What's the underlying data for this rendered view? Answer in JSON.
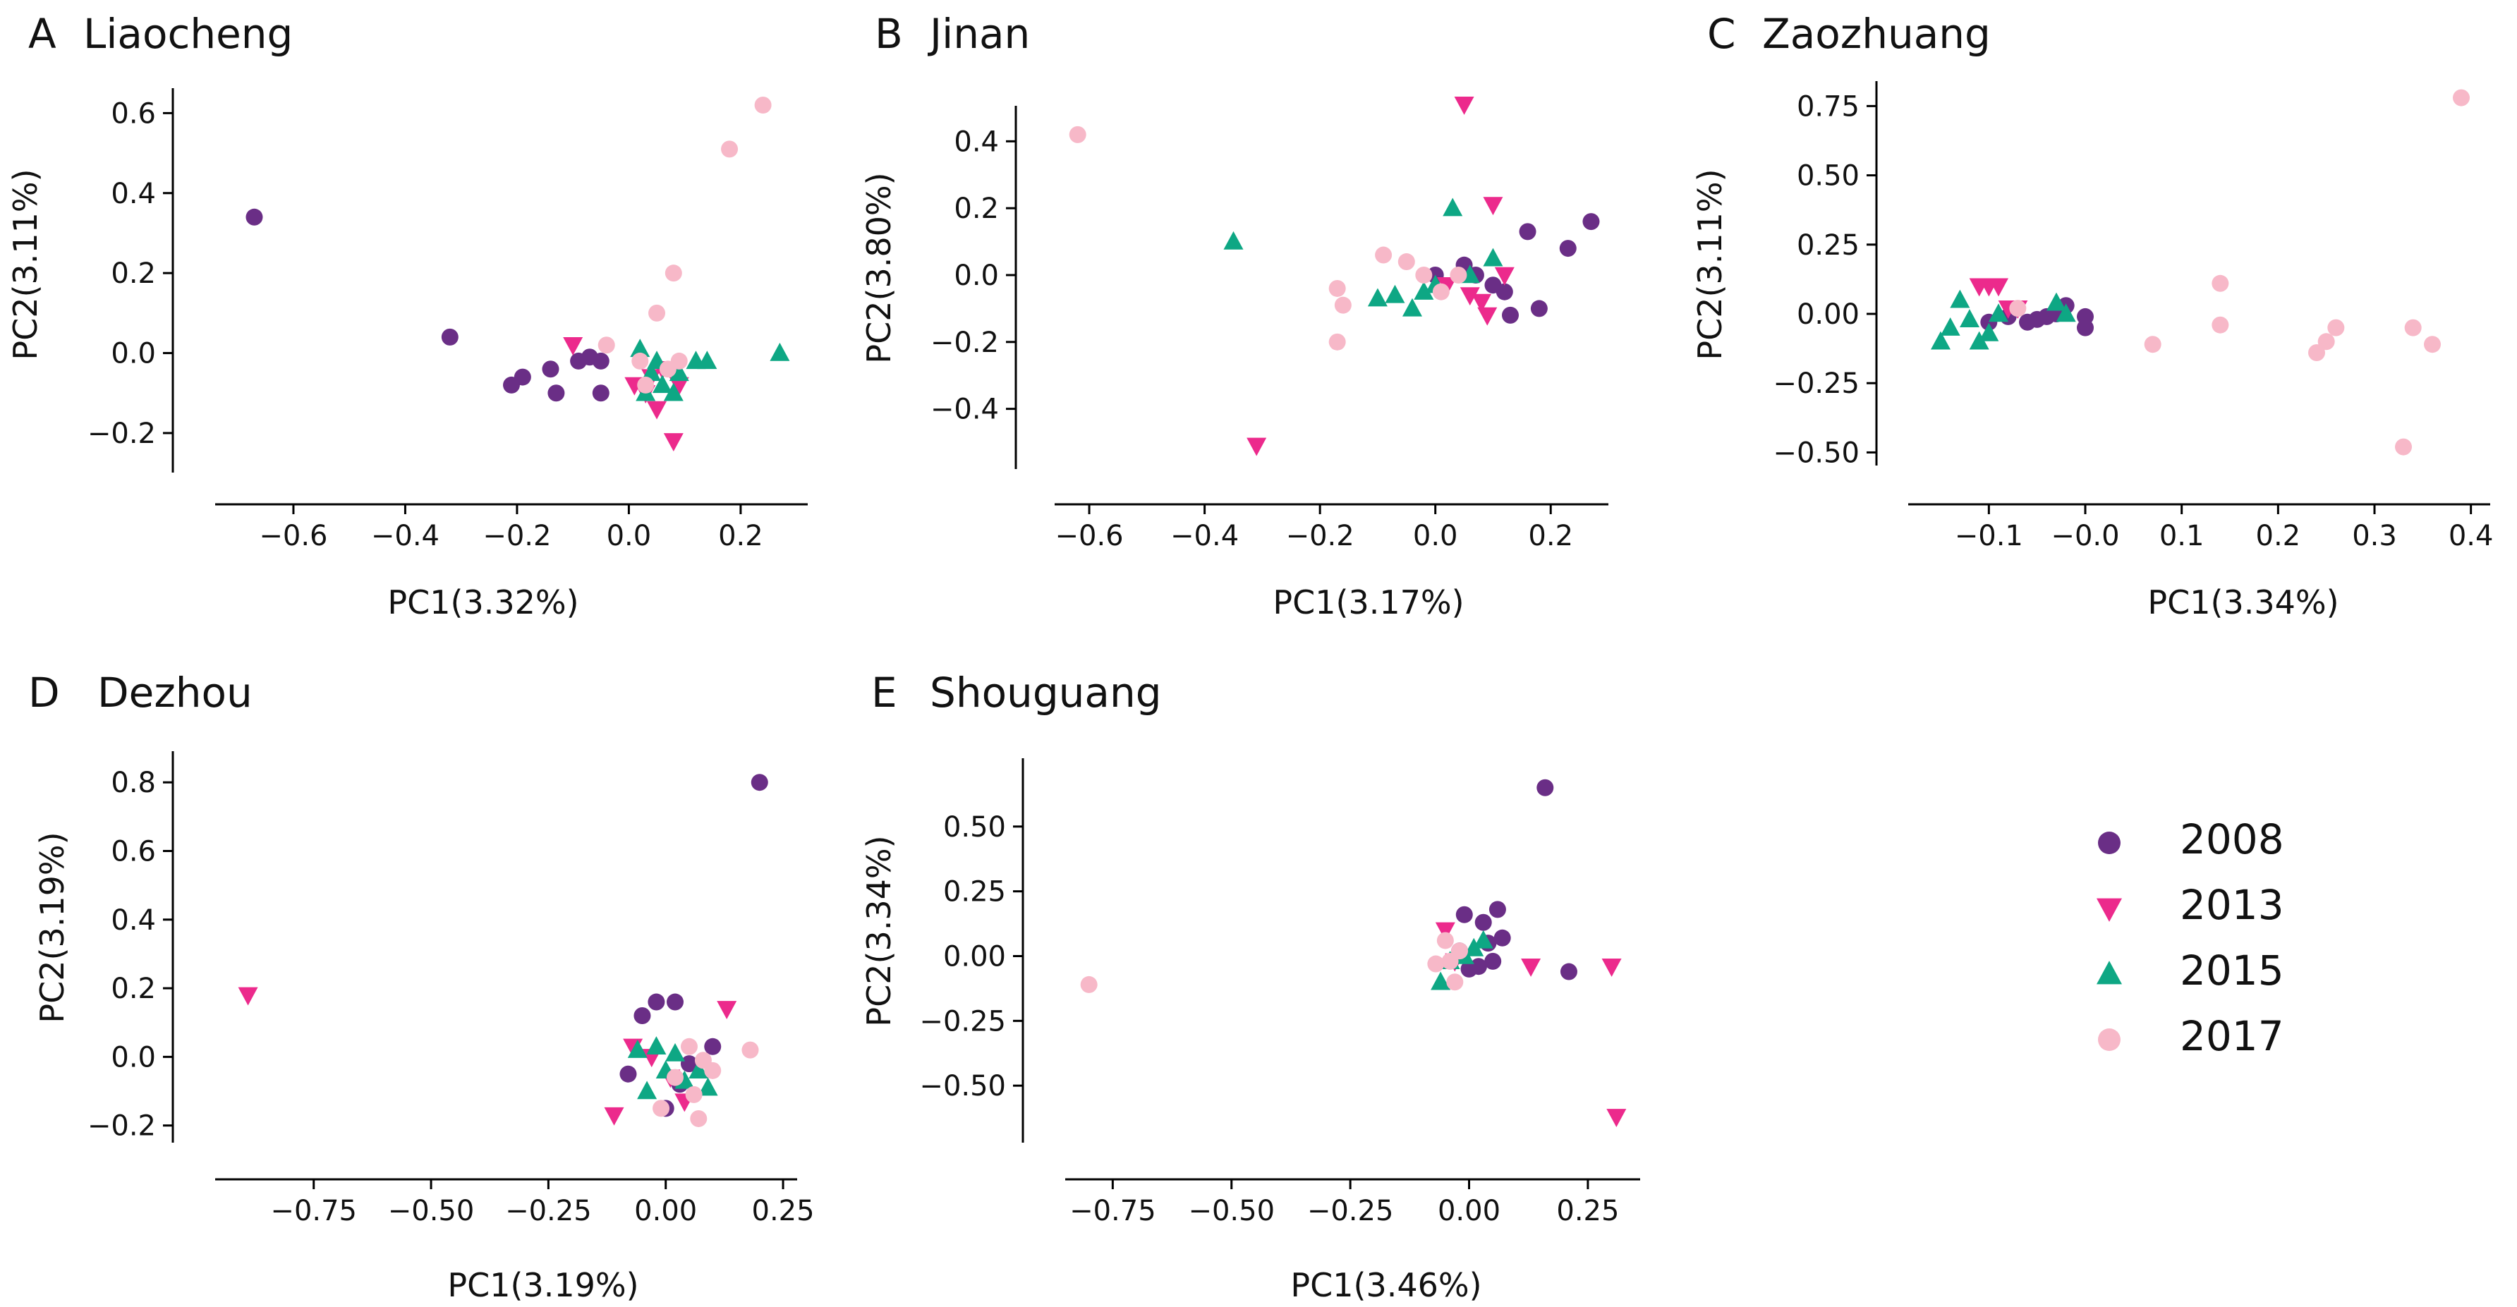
{
  "colors": {
    "2008": "#6A2E86",
    "2013": "#EC2A8C",
    "2015": "#0EA784",
    "2017": "#F7B8C8"
  },
  "legend": [
    {
      "label": "2008",
      "marker": "circle",
      "color_key": "2008"
    },
    {
      "label": "2013",
      "marker": "triangle-down",
      "color_key": "2013"
    },
    {
      "label": "2015",
      "marker": "triangle-up",
      "color_key": "2015"
    },
    {
      "label": "2017",
      "marker": "circle",
      "color_key": "2017"
    }
  ],
  "chart_data": [
    {
      "type": "scatter",
      "panel": "A",
      "title": "Liaocheng",
      "xlabel": "PC1(3.32%)",
      "ylabel": "PC2(3.11%)",
      "xlim": [
        -0.74,
        0.32
      ],
      "ylim": [
        -0.29,
        0.68
      ],
      "xticks": [
        -0.6,
        -0.4,
        -0.2,
        0.0,
        0.2
      ],
      "xtick_labels": [
        "−0.6",
        "−0.4",
        "−0.2",
        "0.0",
        "0.2"
      ],
      "yticks": [
        -0.2,
        0.0,
        0.2,
        0.4,
        0.6
      ],
      "ytick_labels": [
        "−0.2",
        "0.0",
        "0.2",
        "0.4",
        "0.6"
      ],
      "series": [
        {
          "name": "2008",
          "x": [
            -0.67,
            -0.32,
            -0.21,
            -0.19,
            -0.14,
            -0.13,
            -0.09,
            -0.07,
            -0.05,
            -0.05
          ],
          "y": [
            0.34,
            0.04,
            -0.08,
            -0.06,
            -0.04,
            -0.1,
            -0.02,
            -0.01,
            -0.1,
            -0.02
          ]
        },
        {
          "name": "2013",
          "x": [
            -0.1,
            0.01,
            0.03,
            0.04,
            0.05,
            0.06,
            0.08,
            0.09
          ],
          "y": [
            0.02,
            -0.08,
            -0.1,
            -0.06,
            -0.14,
            -0.04,
            -0.22,
            -0.08
          ]
        },
        {
          "name": "2015",
          "x": [
            0.02,
            0.03,
            0.04,
            0.05,
            0.06,
            0.08,
            0.09,
            0.12,
            0.14,
            0.27
          ],
          "y": [
            0.01,
            -0.1,
            -0.05,
            -0.02,
            -0.08,
            -0.1,
            -0.05,
            -0.02,
            -0.02,
            0.0
          ]
        },
        {
          "name": "2017",
          "x": [
            -0.04,
            0.02,
            0.03,
            0.05,
            0.07,
            0.08,
            0.09,
            0.18,
            0.24
          ],
          "y": [
            0.02,
            -0.02,
            -0.08,
            0.1,
            -0.04,
            0.2,
            -0.02,
            0.51,
            0.62
          ]
        }
      ]
    },
    {
      "type": "scatter",
      "panel": "B",
      "title": "Jinan",
      "xlabel": "PC1(3.17%)",
      "ylabel": "PC2(3.80%)",
      "xlim": [
        -0.66,
        0.3
      ],
      "ylim": [
        -0.58,
        0.58
      ],
      "xticks": [
        -0.6,
        -0.4,
        -0.2,
        0.0,
        0.2
      ],
      "xtick_labels": [
        "−0.6",
        "−0.4",
        "−0.2",
        "0.0",
        "0.2"
      ],
      "yticks": [
        -0.4,
        -0.2,
        0.0,
        0.2,
        0.4
      ],
      "ytick_labels": [
        "−0.4",
        "−0.2",
        "0.0",
        "0.2",
        "0.4"
      ],
      "series": [
        {
          "name": "2008",
          "x": [
            0.0,
            0.05,
            0.07,
            0.1,
            0.12,
            0.13,
            0.16,
            0.18,
            0.23,
            0.27
          ],
          "y": [
            0.0,
            0.03,
            0.0,
            -0.03,
            -0.05,
            -0.12,
            0.13,
            -0.1,
            0.08,
            0.16
          ]
        },
        {
          "name": "2013",
          "x": [
            -0.31,
            0.02,
            0.05,
            0.06,
            0.08,
            0.09,
            0.1,
            0.12
          ],
          "y": [
            -0.51,
            -0.03,
            0.51,
            -0.06,
            -0.08,
            -0.12,
            0.21,
            0.0
          ]
        },
        {
          "name": "2015",
          "x": [
            -0.35,
            -0.1,
            -0.07,
            -0.04,
            -0.02,
            0.0,
            0.03,
            0.06,
            0.1
          ],
          "y": [
            0.1,
            -0.07,
            -0.06,
            -0.1,
            -0.05,
            -0.03,
            0.2,
            0.0,
            0.05
          ]
        },
        {
          "name": "2017",
          "x": [
            -0.62,
            -0.17,
            -0.16,
            -0.17,
            -0.09,
            -0.05,
            -0.02,
            0.01,
            0.04
          ],
          "y": [
            0.42,
            -0.04,
            -0.09,
            -0.2,
            0.06,
            0.04,
            0.0,
            -0.05,
            0.0
          ]
        }
      ]
    },
    {
      "type": "scatter",
      "panel": "C",
      "title": "Zaozhuang",
      "xlabel": "PC1(3.34%)",
      "ylabel": "PC2(3.11%)",
      "xlim": [
        -0.18,
        0.42
      ],
      "ylim": [
        -0.56,
        0.84
      ],
      "xticks": [
        -0.1,
        0.0,
        0.1,
        0.2,
        0.3,
        0.4
      ],
      "xtick_labels": [
        "−0.1",
        "−0.0",
        "0.1",
        "0.2",
        "0.3",
        "0.4"
      ],
      "yticks": [
        -0.5,
        -0.25,
        0.0,
        0.25,
        0.5,
        0.75
      ],
      "ytick_labels": [
        "−0.50",
        "−0.25",
        "0.00",
        "0.25",
        "0.50",
        "0.75"
      ],
      "series": [
        {
          "name": "2008",
          "x": [
            -0.1,
            -0.08,
            -0.06,
            -0.05,
            -0.04,
            -0.03,
            -0.02,
            0.0,
            0.0
          ],
          "y": [
            -0.03,
            -0.01,
            -0.03,
            -0.02,
            -0.01,
            0.0,
            0.03,
            -0.01,
            -0.05
          ]
        },
        {
          "name": "2013",
          "x": [
            -0.11,
            -0.1,
            -0.09,
            -0.08,
            -0.07
          ],
          "y": [
            0.1,
            0.1,
            0.1,
            0.02,
            0.02
          ]
        },
        {
          "name": "2015",
          "x": [
            -0.15,
            -0.14,
            -0.13,
            -0.12,
            -0.11,
            -0.1,
            -0.09,
            -0.03,
            -0.02
          ],
          "y": [
            -0.1,
            -0.05,
            0.05,
            -0.02,
            -0.1,
            -0.07,
            0.0,
            0.04,
            0.0
          ]
        },
        {
          "name": "2017",
          "x": [
            -0.07,
            0.07,
            0.14,
            0.14,
            0.24,
            0.25,
            0.26,
            0.33,
            0.34,
            0.36,
            0.39
          ],
          "y": [
            0.02,
            -0.11,
            0.11,
            -0.04,
            -0.14,
            -0.1,
            -0.05,
            -0.48,
            -0.05,
            -0.11,
            0.78
          ]
        }
      ]
    },
    {
      "type": "scatter",
      "panel": "D",
      "title": "Dezhou",
      "xlabel": "PC1(3.19%)",
      "ylabel": "PC2(3.19%)",
      "xlim": [
        -0.96,
        0.28
      ],
      "ylim": [
        -0.25,
        0.86
      ],
      "xticks": [
        -0.75,
        -0.5,
        -0.25,
        0.0,
        0.25
      ],
      "xtick_labels": [
        "−0.75",
        "−0.50",
        "−0.25",
        "0.00",
        "0.25"
      ],
      "yticks": [
        -0.2,
        0.0,
        0.2,
        0.4,
        0.6,
        0.8
      ],
      "ytick_labels": [
        "−0.2",
        "0.0",
        "0.2",
        "0.4",
        "0.6",
        "0.8"
      ],
      "series": [
        {
          "name": "2008",
          "x": [
            -0.08,
            -0.05,
            -0.02,
            0.0,
            0.02,
            0.03,
            0.05,
            0.1,
            0.2
          ],
          "y": [
            -0.05,
            0.12,
            0.16,
            -0.15,
            0.16,
            -0.08,
            -0.02,
            0.03,
            0.8
          ]
        },
        {
          "name": "2013",
          "x": [
            -0.89,
            -0.11,
            -0.07,
            -0.03,
            0.01,
            0.04,
            0.13
          ],
          "y": [
            0.18,
            -0.17,
            0.03,
            0.0,
            -0.06,
            -0.13,
            0.14
          ]
        },
        {
          "name": "2015",
          "x": [
            -0.06,
            -0.04,
            -0.02,
            0.0,
            0.02,
            0.04,
            0.07,
            0.09
          ],
          "y": [
            0.02,
            -0.1,
            0.03,
            -0.04,
            0.01,
            -0.07,
            -0.04,
            -0.09
          ]
        },
        {
          "name": "2017",
          "x": [
            -0.01,
            0.02,
            0.05,
            0.06,
            0.07,
            0.08,
            0.1,
            0.18
          ],
          "y": [
            -0.15,
            -0.06,
            0.03,
            -0.11,
            -0.18,
            -0.01,
            -0.04,
            0.02
          ]
        }
      ]
    },
    {
      "type": "scatter",
      "panel": "E",
      "title": "Shouguang",
      "xlabel": "PC1(3.46%)",
      "ylabel": "PC2(3.34%)",
      "xlim": [
        -0.85,
        0.36
      ],
      "ylim": [
        -0.72,
        0.75
      ],
      "xticks": [
        -0.75,
        -0.5,
        -0.25,
        0.0,
        0.25
      ],
      "xtick_labels": [
        "−0.75",
        "−0.50",
        "−0.25",
        "0.00",
        "0.25"
      ],
      "yticks": [
        -0.5,
        -0.25,
        0.0,
        0.25,
        0.5
      ],
      "ytick_labels": [
        "−0.50",
        "−0.25",
        "0.00",
        "0.25",
        "0.50"
      ],
      "series": [
        {
          "name": "2008",
          "x": [
            -0.02,
            -0.01,
            0.0,
            0.02,
            0.03,
            0.04,
            0.05,
            0.06,
            0.07,
            0.16,
            0.21
          ],
          "y": [
            0.02,
            0.16,
            -0.05,
            -0.04,
            0.13,
            0.05,
            -0.02,
            0.18,
            0.07,
            0.65,
            -0.06
          ]
        },
        {
          "name": "2013",
          "x": [
            -0.05,
            -0.03,
            0.13,
            0.3,
            0.31
          ],
          "y": [
            0.1,
            -0.02,
            -0.04,
            -0.04,
            -0.62
          ]
        },
        {
          "name": "2015",
          "x": [
            -0.06,
            -0.04,
            -0.01,
            0.01,
            0.03
          ],
          "y": [
            -0.1,
            -0.02,
            0.0,
            0.03,
            0.06
          ]
        },
        {
          "name": "2017",
          "x": [
            -0.8,
            -0.07,
            -0.05,
            -0.04,
            -0.03,
            -0.02
          ],
          "y": [
            -0.11,
            -0.03,
            0.06,
            -0.02,
            -0.1,
            0.02
          ]
        }
      ]
    }
  ]
}
